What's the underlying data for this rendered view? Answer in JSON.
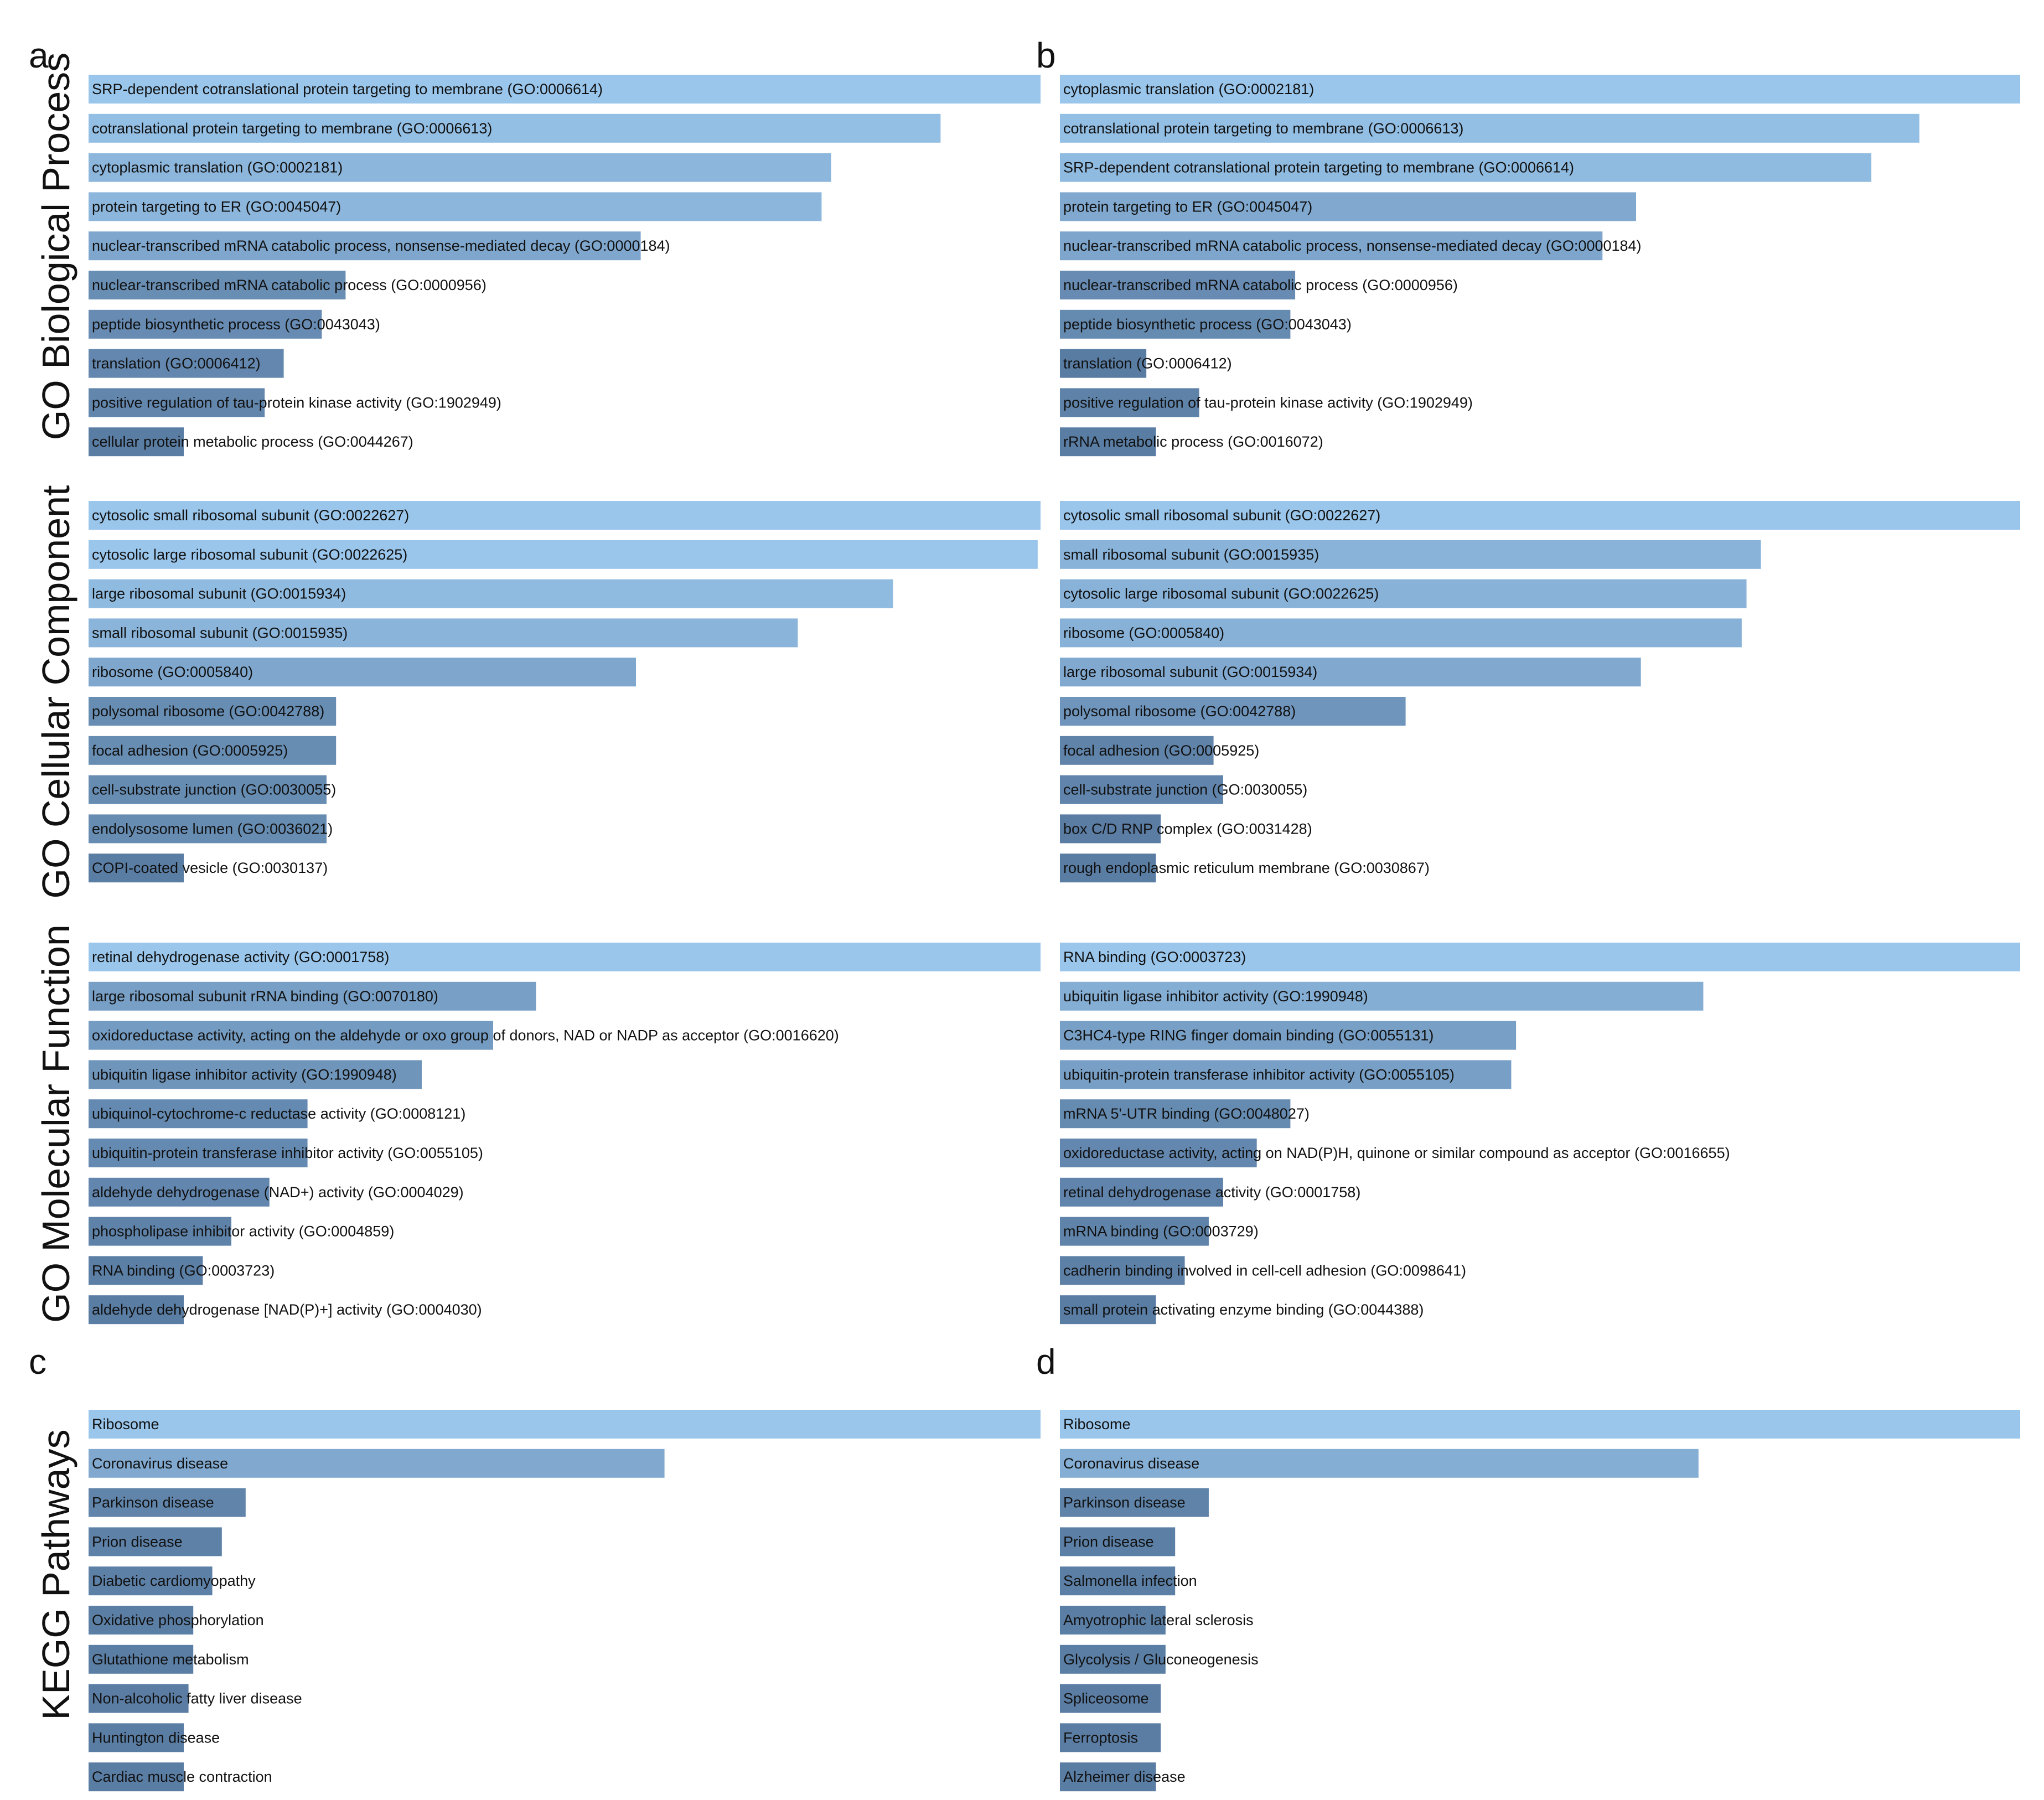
{
  "panel_letters": [
    "a",
    "b",
    "c",
    "d"
  ],
  "section_labels": [
    "GO Biological Process",
    "GO Cellular Component",
    "GO Molecular Function",
    "KEGG Pathways"
  ],
  "colors": {
    "high": "#9ac6ec",
    "low": "#4e6f96"
  },
  "chart_data": [
    {
      "type": "bar",
      "orientation": "horizontal",
      "panel": "a",
      "section": "GO Biological Process",
      "categories": [
        "SRP-dependent cotranslational protein targeting to membrane (GO:0006614)",
        "cotranslational protein targeting to membrane (GO:0006613)",
        "cytoplasmic translation (GO:0002181)",
        "protein targeting to ER (GO:0045047)",
        "nuclear-transcribed mRNA catabolic process, nonsense-mediated decay (GO:0000184)",
        "nuclear-transcribed mRNA catabolic process (GO:0000956)",
        "peptide biosynthetic process (GO:0043043)",
        "translation (GO:0006412)",
        "positive regulation of tau-protein kinase activity (GO:1902949)",
        "cellular protein metabolic process (GO:0044267)"
      ],
      "values": [
        100,
        89.5,
        78,
        77,
        58,
        27,
        24.5,
        20.5,
        18.5,
        10
      ]
    },
    {
      "type": "bar",
      "orientation": "horizontal",
      "panel": "b",
      "section": "GO Biological Process",
      "categories": [
        "cytoplasmic translation (GO:0002181)",
        "cotranslational protein targeting to membrane (GO:0006613)",
        "SRP-dependent cotranslational protein targeting to membrane (GO:0006614)",
        "protein targeting to ER (GO:0045047)",
        "nuclear-transcribed mRNA catabolic process, nonsense-mediated decay (GO:0000184)",
        "nuclear-transcribed mRNA catabolic process (GO:0000956)",
        "peptide biosynthetic process (GO:0043043)",
        "translation (GO:0006412)",
        "positive regulation of tau-protein kinase activity (GO:1902949)",
        "rRNA metabolic process (GO:0016072)"
      ],
      "values": [
        100,
        89.5,
        84.5,
        60,
        56.5,
        24.5,
        24,
        9,
        14.5,
        10
      ]
    },
    {
      "type": "bar",
      "orientation": "horizontal",
      "panel": "a",
      "section": "GO Cellular Component",
      "categories": [
        "cytosolic small ribosomal subunit (GO:0022627)",
        "cytosolic large ribosomal subunit (GO:0022625)",
        "large ribosomal subunit (GO:0015934)",
        "small ribosomal subunit (GO:0015935)",
        "ribosome (GO:0005840)",
        "polysomal ribosome (GO:0042788)",
        "focal adhesion (GO:0005925)",
        "cell-substrate junction (GO:0030055)",
        "endolysosome lumen (GO:0036021)",
        "COPI-coated vesicle (GO:0030137)"
      ],
      "values": [
        100,
        99.7,
        84.5,
        74.5,
        57.5,
        26,
        26,
        25,
        25,
        10
      ]
    },
    {
      "type": "bar",
      "orientation": "horizontal",
      "panel": "b",
      "section": "GO Cellular Component",
      "categories": [
        "cytosolic small ribosomal subunit (GO:0022627)",
        "small ribosomal subunit (GO:0015935)",
        "cytosolic large ribosomal subunit (GO:0022625)",
        "ribosome (GO:0005840)",
        "large ribosomal subunit (GO:0015934)",
        "polysomal ribosome (GO:0042788)",
        "focal adhesion (GO:0005925)",
        "cell-substrate junction (GO:0030055)",
        "box C/D RNP complex (GO:0031428)",
        "rough endoplasmic reticulum membrane (GO:0030867)"
      ],
      "values": [
        100,
        73,
        71.5,
        71,
        60.5,
        36,
        16,
        17,
        10.5,
        10
      ]
    },
    {
      "type": "bar",
      "orientation": "horizontal",
      "panel": "a",
      "section": "GO Molecular Function",
      "categories": [
        "retinal dehydrogenase activity (GO:0001758)",
        "large ribosomal subunit rRNA binding (GO:0070180)",
        "oxidoreductase activity, acting on the aldehyde or oxo group of donors, NAD or NADP as acceptor (GO:0016620)",
        "ubiquitin ligase inhibitor activity (GO:1990948)",
        "ubiquinol-cytochrome-c reductase activity (GO:0008121)",
        "ubiquitin-protein transferase inhibitor activity (GO:0055105)",
        "aldehyde dehydrogenase (NAD+) activity (GO:0004029)",
        "phospholipase inhibitor activity (GO:0004859)",
        "RNA binding (GO:0003723)",
        "aldehyde dehydrogenase [NAD(P)+] activity (GO:0004030)"
      ],
      "values": [
        100,
        47,
        42.5,
        35,
        23,
        23,
        19,
        15,
        12,
        10
      ]
    },
    {
      "type": "bar",
      "orientation": "horizontal",
      "panel": "b",
      "section": "GO Molecular Function",
      "categories": [
        "RNA binding (GO:0003723)",
        "ubiquitin ligase inhibitor activity (GO:1990948)",
        "C3HC4-type RING finger domain binding (GO:0055131)",
        "ubiquitin-protein transferase inhibitor activity (GO:0055105)",
        "mRNA 5'-UTR binding (GO:0048027)",
        "oxidoreductase activity, acting on NAD(P)H, quinone or similar compound as acceptor (GO:0016655)",
        "retinal dehydrogenase activity (GO:0001758)",
        "mRNA binding (GO:0003729)",
        "cadherin binding involved in cell-cell adhesion (GO:0098641)",
        "small protein activating enzyme binding (GO:0044388)"
      ],
      "values": [
        100,
        67,
        47.5,
        47,
        24,
        20.5,
        17,
        15.5,
        13,
        10
      ]
    },
    {
      "type": "bar",
      "orientation": "horizontal",
      "panel": "c",
      "section": "KEGG Pathways",
      "categories": [
        "Ribosome",
        "Coronavirus disease",
        "Parkinson disease",
        "Prion disease",
        "Diabetic cardiomyopathy",
        "Oxidative phosphorylation",
        "Glutathione metabolism",
        "Non-alcoholic fatty liver disease",
        "Huntington disease",
        "Cardiac muscle contraction"
      ],
      "values": [
        100,
        60.5,
        16.5,
        14,
        13,
        11,
        11,
        10.5,
        10,
        10
      ]
    },
    {
      "type": "bar",
      "orientation": "horizontal",
      "panel": "d",
      "section": "KEGG Pathways",
      "categories": [
        "Ribosome",
        "Coronavirus disease",
        "Parkinson disease",
        "Prion disease",
        "Salmonella infection",
        "Amyotrophic lateral sclerosis",
        "Glycolysis / Gluconeogenesis",
        "Spliceosome",
        "Ferroptosis",
        "Alzheimer disease"
      ],
      "values": [
        100,
        66.5,
        15.5,
        12,
        12,
        11,
        11,
        10.5,
        10.5,
        10
      ]
    }
  ]
}
